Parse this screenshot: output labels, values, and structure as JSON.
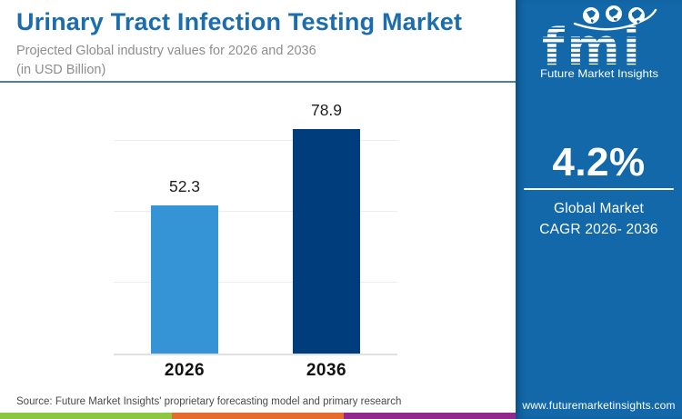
{
  "header": {
    "title": "Urinary Tract Infection Testing Market",
    "subtitle_line1": "Projected Global industry values for 2026 and 2036",
    "subtitle_line2": "(in USD Billion)"
  },
  "chart_data": {
    "type": "bar",
    "categories": [
      "2026",
      "2036"
    ],
    "values": [
      52.3,
      78.9
    ],
    "value_labels": [
      "52.3",
      "78.9"
    ],
    "title": "Urinary Tract Infection Testing Market",
    "subtitle": "Projected Global industry values for 2026 and 2036 (in USD Billion)",
    "xlabel": "",
    "ylabel": "",
    "ylim": [
      0,
      80
    ],
    "gridline_values": [
      25,
      50,
      75
    ],
    "grid": true,
    "legend": "none",
    "bar_colors": [
      "#3494d6",
      "#003d7c"
    ]
  },
  "sidebar": {
    "logo_text": "fmi",
    "logo_caption": "Future Market Insights",
    "cagr_value": "4.2%",
    "cagr_label_line1": "Global Market",
    "cagr_label_line2": "CAGR 2026- 2036",
    "website": "www.futuremarketinsights.com",
    "background_color": "#1268a8"
  },
  "source": {
    "text": "Source: Future Market Insights' proprietary forecasting model and primary research"
  },
  "footer_strip_colors": [
    "#8dc63f",
    "#e76a2e",
    "#93278f"
  ],
  "colors": {
    "title_blue": "#1b6dad",
    "header_divider": "#4e7fa6",
    "bar_2026": "#3494d6",
    "bar_2036": "#003d7c"
  }
}
